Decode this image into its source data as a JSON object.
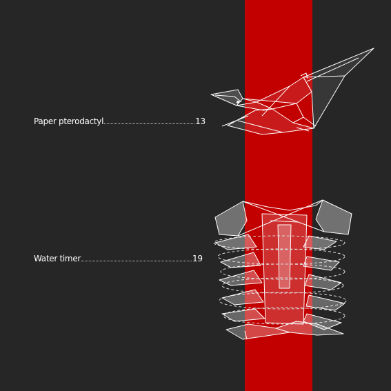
{
  "colors": {
    "background": "#262626",
    "accent_band": "#c20000",
    "line_art": "#ffffff"
  },
  "toc": {
    "entries": [
      {
        "title": "Paper pterodactyl",
        "page": "13",
        "icon": "pterodactyl-illustration"
      },
      {
        "title": "Water timer",
        "page": "19",
        "icon": "water-timer-illustration"
      }
    ]
  }
}
